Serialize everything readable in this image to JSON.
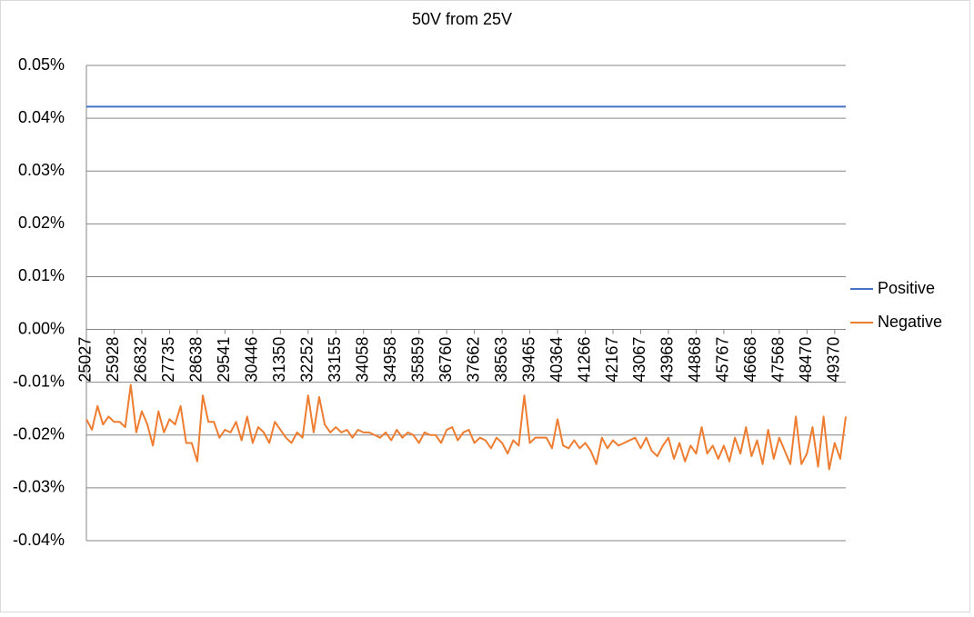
{
  "chart_data": {
    "type": "line",
    "title": "50V from 25V",
    "categories": [
      "25027",
      null,
      null,
      null,
      null,
      "25928",
      null,
      null,
      null,
      null,
      "26832",
      null,
      null,
      null,
      null,
      "27735",
      null,
      null,
      null,
      null,
      "28638",
      null,
      null,
      null,
      null,
      "29541",
      null,
      null,
      null,
      null,
      "30446",
      null,
      null,
      null,
      null,
      "31350",
      null,
      null,
      null,
      null,
      "32252",
      null,
      null,
      null,
      null,
      "33155",
      null,
      null,
      null,
      null,
      "34058",
      null,
      null,
      null,
      null,
      "34958",
      null,
      null,
      null,
      null,
      "35859",
      null,
      null,
      null,
      null,
      "36760",
      null,
      null,
      null,
      null,
      "37662",
      null,
      null,
      null,
      null,
      "38563",
      null,
      null,
      null,
      null,
      "39465",
      null,
      null,
      null,
      null,
      "40364",
      null,
      null,
      null,
      null,
      "41266",
      null,
      null,
      null,
      null,
      "42167",
      null,
      null,
      null,
      null,
      "43067",
      null,
      null,
      null,
      null,
      "43968",
      null,
      null,
      null,
      null,
      "44868",
      null,
      null,
      null,
      null,
      "45767",
      null,
      null,
      null,
      null,
      "46668",
      null,
      null,
      null,
      null,
      "47568",
      null,
      null,
      null,
      null,
      "48470",
      null,
      null,
      null,
      null,
      "49370",
      null,
      null
    ],
    "series": [
      {
        "name": "Positive",
        "color": "#4472c4",
        "values": [
          0.0422,
          0.0422,
          0.0422,
          0.0422,
          0.0422,
          0.0422,
          0.0422,
          0.0422,
          0.0422,
          0.0422,
          0.0422,
          0.0422,
          0.0422,
          0.0422,
          0.0422,
          0.0422,
          0.0422,
          0.0422,
          0.0422,
          0.0422,
          0.0422,
          0.0422,
          0.0422,
          0.0422,
          0.0422,
          0.0422,
          0.0422,
          0.0422,
          0.0422,
          0.0422,
          0.0422,
          0.0422,
          0.0422,
          0.0422,
          0.0422,
          0.0422,
          0.0422,
          0.0422,
          0.0422,
          0.0422,
          0.0422,
          0.0422,
          0.0422,
          0.0422,
          0.0422,
          0.0422,
          0.0422,
          0.0422,
          0.0422,
          0.0422,
          0.0422,
          0.0422,
          0.0422,
          0.0422,
          0.0422,
          0.0422,
          0.0422,
          0.0422,
          0.0422,
          0.0422,
          0.0422,
          0.0422,
          0.0422,
          0.0422,
          0.0422,
          0.0422,
          0.0422,
          0.0422,
          0.0422,
          0.0422,
          0.0422,
          0.0422,
          0.0422,
          0.0422,
          0.0422,
          0.0422,
          0.0422,
          0.0422,
          0.0422,
          0.0422,
          0.0422,
          0.0422,
          0.0422,
          0.0422,
          0.0422,
          0.0422,
          0.0422,
          0.0422,
          0.0422,
          0.0422,
          0.0422,
          0.0422,
          0.0422,
          0.0422,
          0.0422,
          0.0422,
          0.0422,
          0.0422,
          0.0422,
          0.0422,
          0.0422,
          0.0422,
          0.0422,
          0.0422,
          0.0422,
          0.0422,
          0.0422,
          0.0422,
          0.0422,
          0.0422,
          0.0422,
          0.0422,
          0.0422,
          0.0422,
          0.0422,
          0.0422,
          0.0422,
          0.0422,
          0.0422,
          0.0422,
          0.0422,
          0.0422,
          0.0422,
          0.0422,
          0.0422,
          0.0422,
          0.0422,
          0.0422,
          0.0422,
          0.0422,
          0.0422,
          0.0422,
          0.0422,
          0.0422,
          0.0422,
          0.0422,
          0.0422,
          0.0422
        ]
      },
      {
        "name": "Negative",
        "color": "#ed7d31",
        "values": [
          -0.017,
          -0.019,
          -0.0145,
          -0.018,
          -0.0165,
          -0.0175,
          -0.0175,
          -0.0185,
          -0.0105,
          -0.0195,
          -0.0155,
          -0.018,
          -0.022,
          -0.0155,
          -0.0195,
          -0.017,
          -0.018,
          -0.0145,
          -0.0215,
          -0.0215,
          -0.025,
          -0.0125,
          -0.0175,
          -0.0175,
          -0.0205,
          -0.019,
          -0.0195,
          -0.0175,
          -0.021,
          -0.0165,
          -0.0215,
          -0.0185,
          -0.0195,
          -0.0215,
          -0.0175,
          -0.019,
          -0.0205,
          -0.0215,
          -0.0195,
          -0.0205,
          -0.0125,
          -0.0195,
          -0.0128,
          -0.018,
          -0.0195,
          -0.0185,
          -0.0195,
          -0.019,
          -0.0205,
          -0.019,
          -0.0195,
          -0.0195,
          -0.02,
          -0.0205,
          -0.0195,
          -0.021,
          -0.019,
          -0.0205,
          -0.0195,
          -0.02,
          -0.0215,
          -0.0195,
          -0.02,
          -0.02,
          -0.0215,
          -0.019,
          -0.0185,
          -0.021,
          -0.0195,
          -0.019,
          -0.0215,
          -0.0205,
          -0.021,
          -0.0225,
          -0.0205,
          -0.0215,
          -0.0235,
          -0.021,
          -0.022,
          -0.0125,
          -0.0215,
          -0.0205,
          -0.0205,
          -0.0205,
          -0.0225,
          -0.017,
          -0.022,
          -0.0225,
          -0.021,
          -0.0225,
          -0.0215,
          -0.023,
          -0.0255,
          -0.0205,
          -0.0225,
          -0.021,
          -0.022,
          -0.0215,
          -0.021,
          -0.0205,
          -0.0225,
          -0.0205,
          -0.023,
          -0.024,
          -0.022,
          -0.0205,
          -0.0245,
          -0.0215,
          -0.025,
          -0.022,
          -0.0235,
          -0.0185,
          -0.0235,
          -0.022,
          -0.0245,
          -0.022,
          -0.025,
          -0.0205,
          -0.0235,
          -0.0185,
          -0.024,
          -0.021,
          -0.0255,
          -0.019,
          -0.0245,
          -0.0205,
          -0.023,
          -0.0255,
          -0.0165,
          -0.0255,
          -0.0235,
          -0.0185,
          -0.026,
          -0.0165,
          -0.0265,
          -0.0215,
          -0.0245,
          -0.0165
        ]
      }
    ],
    "ylim": [
      -0.04,
      0.05
    ],
    "yticks": [
      {
        "value": -0.04,
        "label": "-0.04%"
      },
      {
        "value": -0.03,
        "label": "-0.03%"
      },
      {
        "value": -0.02,
        "label": "-0.02%"
      },
      {
        "value": -0.01,
        "label": "-0.01%"
      },
      {
        "value": 0,
        "label": "0.00%"
      },
      {
        "value": 0.01,
        "label": "0.01%"
      },
      {
        "value": 0.02,
        "label": "0.02%"
      },
      {
        "value": 0.03,
        "label": "0.03%"
      },
      {
        "value": 0.04,
        "label": "0.04%"
      },
      {
        "value": 0.05,
        "label": "0.05%"
      }
    ],
    "grid": true,
    "legend": "right"
  }
}
